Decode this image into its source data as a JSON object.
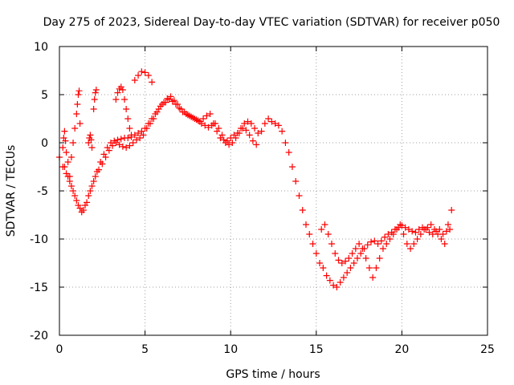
{
  "chart_data": {
    "type": "scatter",
    "title": "Day 275 of 2023, Sidereal Day-to-day VTEC variation (SDTVAR) for receiver p050",
    "xlabel": "GPS time / hours",
    "ylabel": "SDTVAR / TECUs",
    "xlim": [
      0,
      25
    ],
    "ylim": [
      -20,
      10
    ],
    "xticks": [
      "0",
      "5",
      "10",
      "15",
      "20",
      "25"
    ],
    "yticks": [
      "10",
      "5",
      "0",
      "-5",
      "-10",
      "-15",
      "-20"
    ],
    "grid": true,
    "marker": "plus",
    "color": "#ff0000",
    "series": [
      {
        "name": "trace-main-a",
        "x": [
          0.0,
          0.2,
          0.4,
          0.6,
          0.8,
          1.0,
          1.2,
          1.4,
          1.6,
          1.8,
          2.0,
          2.2,
          2.4,
          2.6,
          2.8,
          3.0,
          3.2,
          3.4,
          3.6,
          3.8,
          4.0,
          4.2,
          4.4,
          4.6,
          4.8,
          5.0,
          5.2,
          5.4,
          5.6,
          5.8,
          6.0,
          6.2,
          6.4,
          6.6,
          6.8,
          7.0,
          7.2,
          7.4,
          7.6,
          7.8,
          8.0,
          8.2,
          8.4,
          8.6,
          8.8,
          9.0,
          9.2,
          9.4,
          9.6,
          9.8,
          10.0,
          10.2,
          10.4,
          10.6,
          10.8,
          11.0,
          11.2,
          11.4,
          11.6,
          11.8,
          12.0,
          12.2,
          12.4,
          12.6,
          12.8,
          13.0,
          13.2,
          13.4,
          13.6,
          13.8,
          14.0,
          14.2,
          14.4,
          14.6,
          14.8,
          15.0,
          15.2,
          15.4,
          15.6,
          15.8,
          16.0,
          16.2,
          16.4,
          16.6,
          16.8,
          17.0,
          17.2,
          17.4,
          17.6,
          17.8,
          18.0,
          18.2,
          18.4,
          18.6,
          18.8,
          19.0,
          19.2,
          19.4,
          19.6,
          19.8,
          20.0,
          20.2,
          20.4,
          20.6,
          20.8,
          21.0,
          21.2,
          21.4,
          21.6,
          21.8,
          22.0,
          22.2,
          22.4,
          22.6,
          22.8
        ],
        "y": [
          -1.5,
          -2.5,
          -3.2,
          -4.0,
          -5.0,
          -6.0,
          -6.8,
          -7.0,
          -6.2,
          -5.0,
          -4.0,
          -3.0,
          -2.0,
          -1.2,
          -0.5,
          0.0,
          0.2,
          0.3,
          0.4,
          0.5,
          0.5,
          0.6,
          0.8,
          1.0,
          1.2,
          1.5,
          2.0,
          2.5,
          3.0,
          3.5,
          4.0,
          4.2,
          4.5,
          4.3,
          4.0,
          3.6,
          3.2,
          3.0,
          2.8,
          2.6,
          2.4,
          2.2,
          2.5,
          2.8,
          3.0,
          2.0,
          1.2,
          0.5,
          0.3,
          0.2,
          0.5,
          0.8,
          1.0,
          1.5,
          2.0,
          2.2,
          2.0,
          1.5,
          1.0,
          1.2,
          2.0,
          2.5,
          2.2,
          2.0,
          1.8,
          1.2,
          0.0,
          -1.0,
          -2.5,
          -4.0,
          -5.5,
          -7.0,
          -8.5,
          -9.5,
          -10.5,
          -11.5,
          -12.5,
          -13.0,
          -13.8,
          -14.3,
          -14.8,
          -15.0,
          -14.5,
          -14.0,
          -13.5,
          -13.0,
          -12.5,
          -12.0,
          -11.5,
          -11.0,
          -10.6,
          -10.3,
          -10.2,
          -10.5,
          -10.2,
          -9.8,
          -9.5,
          -9.3,
          -9.0,
          -8.8,
          -8.6,
          -8.8,
          -9.0,
          -9.2,
          -9.3,
          -9.0,
          -8.8,
          -9.0,
          -9.3,
          -9.5,
          -9.2,
          -9.0,
          -9.5,
          -9.2,
          -9.0
        ]
      },
      {
        "name": "trace-main-b",
        "x": [
          0.3,
          0.5,
          0.7,
          0.9,
          1.1,
          1.3,
          1.5,
          1.7,
          1.9,
          2.1,
          2.3,
          2.5,
          2.7,
          2.9,
          3.1,
          3.3,
          3.5,
          3.7,
          3.9,
          4.1,
          4.3,
          4.5,
          4.7,
          4.9,
          5.1,
          5.3,
          5.5,
          5.7,
          5.9,
          6.1,
          6.3,
          6.5,
          6.7,
          6.9,
          7.1,
          7.3,
          7.5,
          7.7,
          7.9,
          8.1,
          8.3,
          8.5,
          8.7,
          8.9,
          9.1,
          9.3,
          9.5,
          9.7,
          9.9,
          10.1,
          10.3,
          10.5,
          10.7,
          10.9,
          11.1,
          11.3,
          11.5
        ],
        "y": [
          -2.5,
          -3.5,
          -4.5,
          -5.5,
          -6.5,
          -7.2,
          -6.5,
          -5.5,
          -4.5,
          -3.5,
          -2.8,
          -2.2,
          -1.5,
          -0.8,
          -0.3,
          0.0,
          -0.2,
          -0.4,
          -0.5,
          -0.3,
          0.0,
          0.3,
          0.5,
          0.8,
          1.5,
          2.0,
          2.5,
          3.2,
          3.8,
          4.2,
          4.6,
          4.8,
          4.4,
          4.0,
          3.5,
          3.2,
          2.9,
          2.7,
          2.5,
          2.3,
          2.0,
          1.8,
          1.6,
          1.8,
          2.0,
          1.5,
          0.8,
          0.0,
          -0.2,
          0.0,
          0.5,
          1.0,
          1.5,
          1.3,
          0.8,
          0.2,
          -0.2
        ]
      },
      {
        "name": "trace-spikes",
        "x": [
          0.2,
          0.25,
          0.3,
          0.35,
          0.4,
          0.5,
          0.6,
          0.7,
          0.8,
          0.9,
          1.0,
          1.05,
          1.1,
          1.15,
          1.2,
          1.7,
          1.75,
          1.8,
          1.85,
          1.9,
          2.0,
          2.05,
          2.1,
          2.15
        ],
        "y": [
          -0.5,
          0.5,
          1.2,
          0.2,
          -1.0,
          -2.0,
          -3.5,
          -1.5,
          0.0,
          1.5,
          3.0,
          4.0,
          5.0,
          5.4,
          2.0,
          0.0,
          0.5,
          0.8,
          0.3,
          -0.5,
          3.5,
          4.5,
          5.2,
          5.5
        ]
      },
      {
        "name": "trace-hump",
        "x": [
          3.3,
          3.4,
          3.5,
          3.6,
          3.7,
          3.8,
          3.9,
          4.0,
          4.1,
          4.2,
          4.4,
          4.6,
          4.8,
          5.0,
          5.2,
          5.4
        ],
        "y": [
          4.5,
          5.2,
          5.6,
          5.8,
          5.5,
          4.5,
          3.5,
          2.5,
          1.5,
          0.8,
          6.5,
          7.0,
          7.4,
          7.3,
          7.0,
          6.3
        ]
      },
      {
        "name": "trace-late",
        "x": [
          15.3,
          15.5,
          15.7,
          15.9,
          16.1,
          16.3,
          16.5,
          16.7,
          16.9,
          17.1,
          17.3,
          17.5,
          17.7,
          17.9,
          18.1,
          18.3,
          18.5,
          18.7,
          18.9,
          19.1,
          19.3,
          19.5,
          19.7,
          19.9,
          20.1,
          20.3,
          20.5,
          20.7,
          20.9,
          21.1,
          21.3,
          21.5,
          21.7,
          21.9,
          22.1,
          22.3,
          22.5,
          22.7,
          22.9
        ],
        "y": [
          -9.0,
          -8.5,
          -9.5,
          -10.5,
          -11.5,
          -12.2,
          -12.5,
          -12.3,
          -12.0,
          -11.5,
          -11.0,
          -10.5,
          -11.0,
          -12.0,
          -13.0,
          -14.0,
          -13.0,
          -12.0,
          -11.0,
          -10.5,
          -10.0,
          -9.5,
          -9.0,
          -8.5,
          -9.5,
          -10.5,
          -11.0,
          -10.5,
          -10.0,
          -9.5,
          -9.0,
          -8.8,
          -8.5,
          -9.0,
          -9.5,
          -10.0,
          -10.5,
          -8.5,
          -7.0
        ]
      }
    ]
  }
}
